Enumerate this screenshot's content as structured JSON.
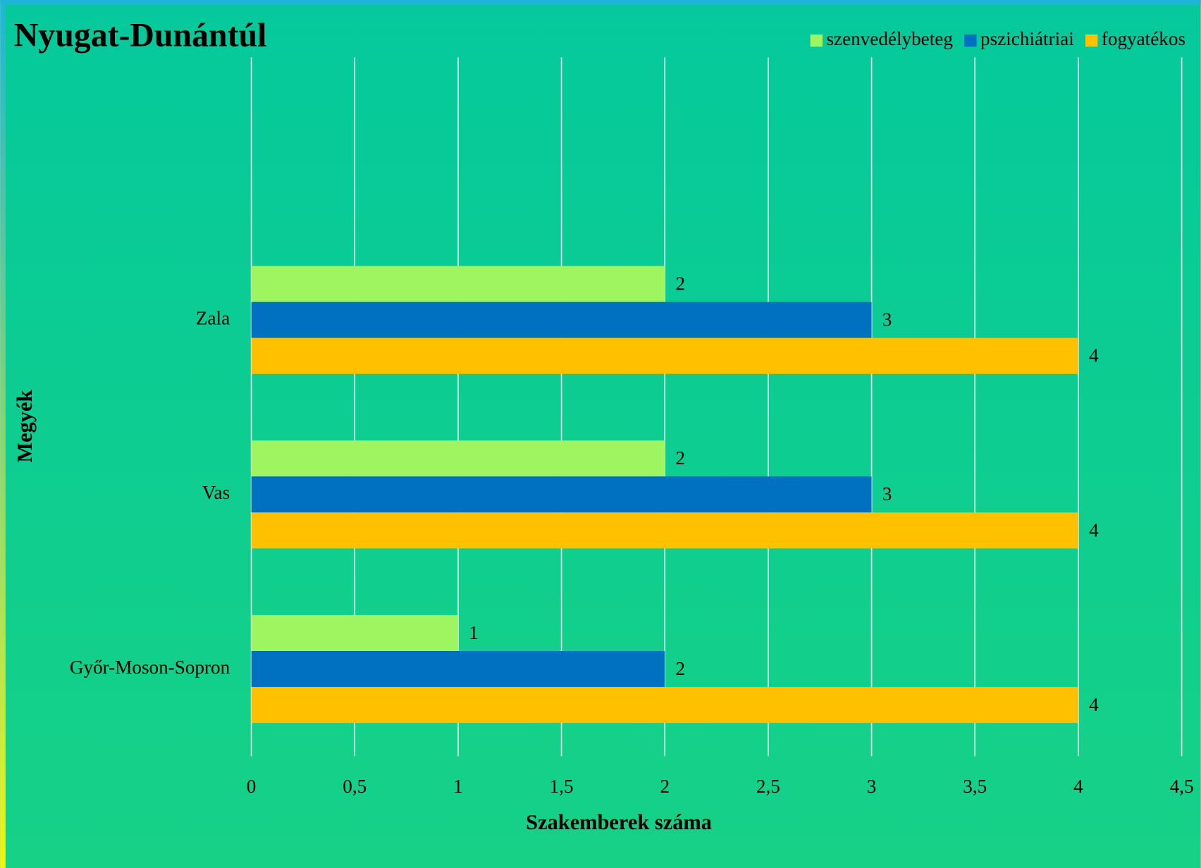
{
  "chart_data": {
    "type": "bar",
    "orientation": "horizontal",
    "title": "Nyugat-Dunántúl",
    "x_label": "Szakemberek száma",
    "y_label": "Megyék",
    "categories": [
      "Győr-Moson-Sopron",
      "Vas",
      "Zala"
    ],
    "series": [
      {
        "name": "szenvedélybeteg",
        "color": "#9ef560",
        "values": [
          1,
          2,
          2
        ]
      },
      {
        "name": "pszichiátriai",
        "color": "#0070c0",
        "values": [
          2,
          3,
          3
        ]
      },
      {
        "name": "fogyatékos",
        "color": "#ffc000",
        "values": [
          4,
          4,
          4
        ]
      }
    ],
    "xlim": [
      0,
      4.5
    ],
    "xticks": [
      0,
      {
        "value": 0.5,
        "label": "0,5"
      },
      1,
      {
        "value": 1.5,
        "label": "1,5"
      },
      2,
      {
        "value": 2.5,
        "label": "2,5"
      },
      3,
      {
        "value": 3.5,
        "label": "3,5"
      },
      4,
      {
        "value": 4.5,
        "label": "4,5"
      }
    ],
    "grid": true,
    "legend": "top-right"
  }
}
